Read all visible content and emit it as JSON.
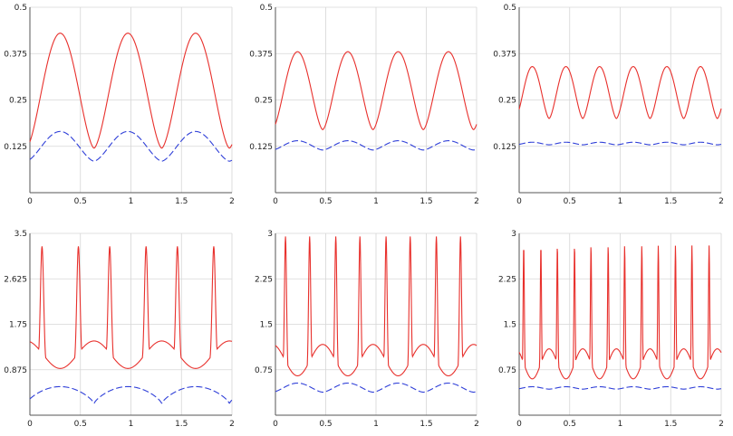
{
  "colors": {
    "red_series": "#e8302c",
    "blue_series": "#2f3fd8",
    "grid": "#d6d6d6",
    "axis": "#555555"
  },
  "chart_data": [
    {
      "type": "line",
      "xlim": [
        0,
        2
      ],
      "ylim": [
        0,
        0.5
      ],
      "grid": true,
      "xticks": [
        "0",
        "0.5",
        "1",
        "1.5",
        "2"
      ],
      "yticks": [
        "0.125",
        "0.25",
        "0.375",
        "0.5"
      ],
      "ytick_values": [
        0.125,
        0.25,
        0.375,
        0.5
      ],
      "series": [
        {
          "style": "solid",
          "color": "red",
          "waveform": "round",
          "period": 0.67,
          "phase": 0.3,
          "min": 0.12,
          "max": 0.43
        },
        {
          "style": "dashed",
          "color": "blue",
          "waveform": "round",
          "period": 0.67,
          "phase": 0.3,
          "min": 0.085,
          "max": 0.165
        }
      ]
    },
    {
      "type": "line",
      "xlim": [
        0,
        2
      ],
      "ylim": [
        0,
        0.5
      ],
      "grid": true,
      "xticks": [
        "0",
        "0.5",
        "1",
        "1.5",
        "2"
      ],
      "yticks": [
        "0.125",
        "0.25",
        "0.375",
        "0.5"
      ],
      "ytick_values": [
        0.125,
        0.25,
        0.375,
        0.5
      ],
      "series": [
        {
          "style": "solid",
          "color": "red",
          "waveform": "round",
          "period": 0.5,
          "phase": 0.22,
          "min": 0.17,
          "max": 0.38
        },
        {
          "style": "dashed",
          "color": "blue",
          "waveform": "round",
          "period": 0.5,
          "phase": 0.22,
          "min": 0.115,
          "max": 0.14
        }
      ]
    },
    {
      "type": "line",
      "xlim": [
        0,
        2
      ],
      "ylim": [
        0,
        0.5
      ],
      "grid": true,
      "xticks": [
        "0",
        "0.5",
        "1",
        "1.5",
        "2"
      ],
      "yticks": [
        "0.125",
        "0.25",
        "0.375",
        "0.5"
      ],
      "ytick_values": [
        0.125,
        0.25,
        0.375,
        0.5
      ],
      "series": [
        {
          "style": "solid",
          "color": "red",
          "waveform": "round",
          "period": 0.333,
          "phase": 0.13,
          "min": 0.2,
          "max": 0.34
        },
        {
          "style": "dashed",
          "color": "blue",
          "waveform": "round",
          "period": 0.333,
          "phase": 0.13,
          "min": 0.129,
          "max": 0.136
        }
      ]
    },
    {
      "type": "line",
      "xlim": [
        0,
        2
      ],
      "ylim": [
        0,
        3.5
      ],
      "grid": true,
      "xticks": [
        "0",
        "0.5",
        "1",
        "1.5",
        "2"
      ],
      "yticks": [
        "0.875",
        "1.75",
        "2.625",
        "3.5"
      ],
      "ytick_values": [
        0.875,
        1.75,
        2.625,
        3.5
      ],
      "series": [
        {
          "style": "solid",
          "color": "red",
          "waveform": "spiky",
          "period": 0.67,
          "phase": 0.3,
          "min": 0.9,
          "max": 3.25,
          "peak_offset": 0.18,
          "sharpness": 12
        },
        {
          "style": "dashed",
          "color": "blue",
          "waveform": "cusp",
          "period": 0.67,
          "phase": 0.3,
          "min": 0.22,
          "max": 0.55
        }
      ]
    },
    {
      "type": "line",
      "xlim": [
        0,
        2
      ],
      "ylim": [
        0,
        3
      ],
      "grid": true,
      "xticks": [
        "0",
        "0.5",
        "1",
        "1.5",
        "2"
      ],
      "yticks": [
        "0.75",
        "1.5",
        "2.25",
        "3"
      ],
      "ytick_values": [
        0.75,
        1.5,
        2.25,
        3
      ],
      "series": [
        {
          "style": "solid",
          "color": "red",
          "waveform": "spiky",
          "period": 0.5,
          "phase": 0.22,
          "min": 0.65,
          "max": 2.95,
          "peak_offset": 0.12,
          "sharpness": 14
        },
        {
          "style": "dashed",
          "color": "blue",
          "waveform": "round",
          "period": 0.5,
          "phase": 0.22,
          "min": 0.38,
          "max": 0.53
        }
      ]
    },
    {
      "type": "line",
      "xlim": [
        0,
        2
      ],
      "ylim": [
        0,
        3
      ],
      "grid": true,
      "xticks": [
        "0",
        "0.5",
        "1",
        "1.5",
        "2"
      ],
      "yticks": [
        "0.75",
        "1.5",
        "2.25",
        "3"
      ],
      "ytick_values": [
        0.75,
        1.5,
        2.25,
        3
      ],
      "series": [
        {
          "style": "solid",
          "color": "red",
          "waveform": "spiky",
          "period": 0.333,
          "phase": 0.13,
          "min": 0.6,
          "max": 2.8,
          "peak_offset": 0.085,
          "sharpness": 16
        },
        {
          "style": "dashed",
          "color": "blue",
          "waveform": "round",
          "period": 0.333,
          "phase": 0.13,
          "min": 0.43,
          "max": 0.47
        }
      ]
    }
  ]
}
